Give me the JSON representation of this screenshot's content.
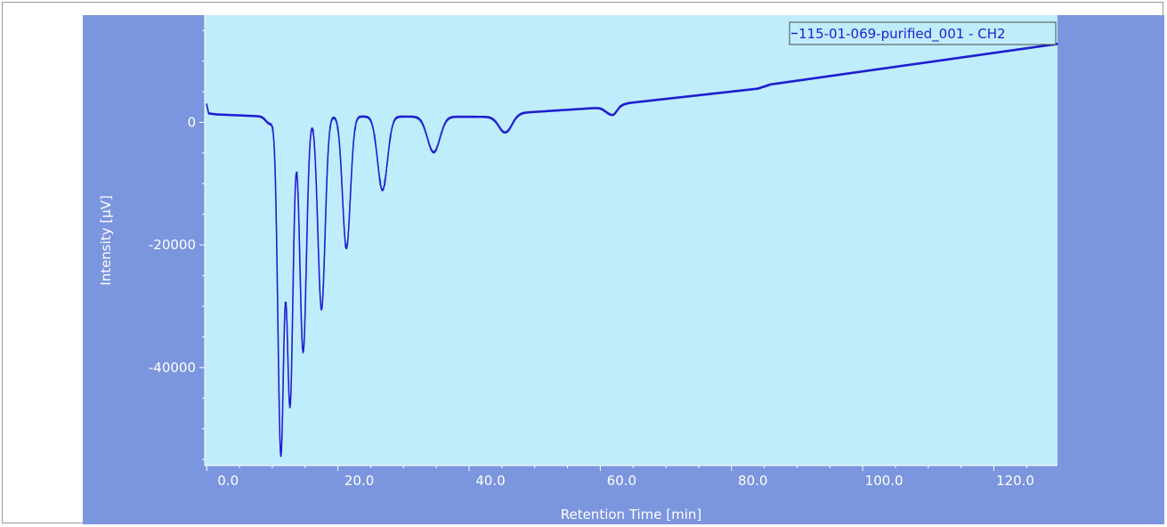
{
  "chart_data": {
    "type": "line",
    "xlabel": "Retention Time [min]",
    "ylabel": "Intensity [µV]",
    "xlim": [
      -0.3,
      129.7
    ],
    "ylim": [
      -56000,
      17500
    ],
    "x_ticks": [
      "0.0",
      "20.0",
      "40.0",
      "60.0",
      "80.0",
      "100.0",
      "120.0"
    ],
    "x_tick_values": [
      0,
      20,
      40,
      60,
      80,
      100,
      120
    ],
    "y_ticks": [
      "0",
      "-20000",
      "-40000"
    ],
    "y_tick_values": [
      0,
      -20000,
      -40000
    ],
    "grid": false,
    "legend_position": "top-right",
    "series": [
      {
        "name": "115-01-069-purified_001 - CH2",
        "color": "#1f1fd0",
        "baseline": [
          [
            0,
            1500
          ],
          [
            1.5,
            1300
          ],
          [
            8,
            1000
          ],
          [
            45,
            900
          ],
          [
            47,
            1500
          ],
          [
            60,
            2400
          ],
          [
            62,
            2300
          ],
          [
            63,
            3000
          ],
          [
            84,
            5500
          ],
          [
            86,
            6200
          ],
          [
            129.7,
            12800
          ]
        ],
        "peaks": [
          {
            "rt": 9.6,
            "depth": 1200,
            "width": 0.6
          },
          {
            "rt": 11.3,
            "depth": 55000,
            "width": 0.45
          },
          {
            "rt": 12.7,
            "depth": 47000,
            "width": 0.45
          },
          {
            "rt": 14.7,
            "depth": 38500,
            "width": 0.5
          },
          {
            "rt": 17.5,
            "depth": 31500,
            "width": 0.55
          },
          {
            "rt": 21.3,
            "depth": 21500,
            "width": 0.6
          },
          {
            "rt": 26.8,
            "depth": 12000,
            "width": 0.75
          },
          {
            "rt": 34.6,
            "depth": 5800,
            "width": 0.95
          },
          {
            "rt": 45.6,
            "depth": 2700,
            "width": 1.0
          },
          {
            "rt": 61.8,
            "depth": 1100,
            "width": 0.9
          }
        ]
      }
    ]
  },
  "colors": {
    "plot_background": "#bfedfb",
    "axis_background": "#7b95de",
    "line": "#1f1fd0",
    "axis_text": "#ffffff"
  }
}
